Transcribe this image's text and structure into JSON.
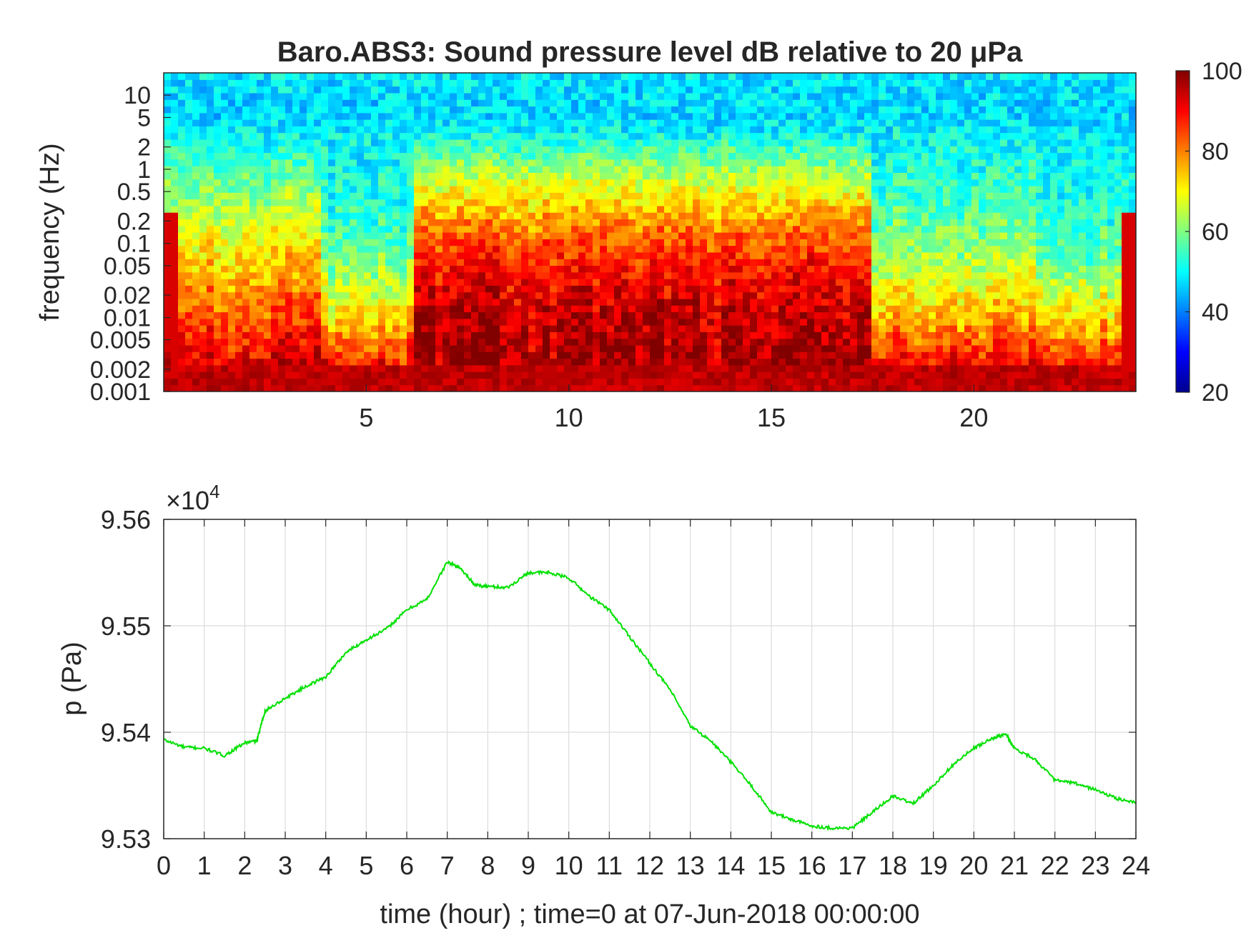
{
  "chart_data": [
    {
      "type": "heatmap",
      "title": "Baro.ABS3: Sound pressure level dB relative to 20 μPa",
      "xlabel": "",
      "ylabel": "frequency (Hz)",
      "x_range": [
        0,
        24
      ],
      "x_ticks": [
        "5",
        "10",
        "15",
        "20"
      ],
      "y_scale": "log",
      "y_range": [
        0.001,
        20
      ],
      "y_ticks": [
        "0.001",
        "0.002",
        "0.005",
        "0.01",
        "0.02",
        "0.05",
        "0.1",
        "0.2",
        "0.5",
        "1",
        "2",
        "5",
        "10"
      ],
      "colormap": "jet",
      "colorbar": {
        "range": [
          20,
          100
        ],
        "ticks": [
          "20",
          "40",
          "60",
          "80",
          "100"
        ]
      },
      "grid": false
    },
    {
      "type": "line",
      "title": "",
      "xlabel": "time (hour) ; time=0 at 07-Jun-2018 00:00:00",
      "ylabel": "p (Pa)",
      "x_range": [
        0,
        24
      ],
      "x_ticks": [
        "0",
        "1",
        "2",
        "3",
        "4",
        "5",
        "6",
        "7",
        "8",
        "9",
        "10",
        "11",
        "12",
        "13",
        "14",
        "15",
        "16",
        "17",
        "18",
        "19",
        "20",
        "21",
        "22",
        "23",
        "24"
      ],
      "y_range": [
        95300,
        95600
      ],
      "y_ticks": [
        "9.53",
        "9.54",
        "9.55",
        "9.56"
      ],
      "y_multiplier": "×10",
      "y_multiplier_exp": "4",
      "grid": true,
      "color": "#00e000",
      "series": [
        {
          "x": [
            0,
            0.5,
            1,
            1.5,
            2,
            2.3,
            2.5,
            3,
            3.5,
            4,
            4.5,
            5,
            5.5,
            6,
            6.5,
            7,
            7.3,
            7.7,
            8,
            8.5,
            9,
            9.5,
            10,
            10.5,
            11,
            11.5,
            12,
            12.5,
            13,
            13.5,
            14,
            14.5,
            15,
            15.5,
            16,
            16.5,
            17,
            17.5,
            18,
            18.5,
            19,
            19.5,
            20,
            20.5,
            20.8,
            21,
            21.5,
            22,
            22.5,
            23,
            23.5,
            24
          ],
          "y": [
            95393,
            95386,
            95385,
            95378,
            95390,
            95392,
            95420,
            95432,
            95443,
            95452,
            95475,
            95487,
            95497,
            95515,
            95525,
            95560,
            95555,
            95538,
            95537,
            95536,
            95550,
            95550,
            95545,
            95528,
            95515,
            95490,
            95465,
            95440,
            95406,
            95392,
            95372,
            95350,
            95325,
            95318,
            95312,
            95310,
            95310,
            95325,
            95340,
            95333,
            95350,
            95370,
            95385,
            95395,
            95398,
            95385,
            95375,
            95355,
            95352,
            95346,
            95338,
            95334
          ]
        }
      ]
    }
  ]
}
